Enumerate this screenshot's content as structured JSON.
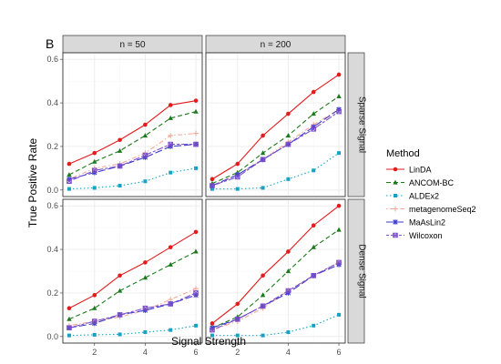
{
  "panel_tag": "B",
  "chart_data": {
    "type": "line",
    "xlabel": "Signal Strength",
    "ylabel": "True Positive Rate",
    "xlim": [
      0.75,
      6.25
    ],
    "ylim": [
      -0.03,
      0.63
    ],
    "x_ticks": [
      2,
      4,
      6
    ],
    "y_ticks": [
      0.0,
      0.2,
      0.4,
      0.6
    ],
    "y_tick_labels": [
      "0.0",
      "0.2",
      "0.4",
      "0.6"
    ],
    "x_tick_labels": [
      "2",
      "4",
      "6"
    ],
    "col_facets": [
      "n = 50",
      "n = 200"
    ],
    "row_facets": [
      "Sparse Signal",
      "Dense Signal"
    ],
    "grid": true,
    "legend_title": "Method",
    "legend_position": "right",
    "x": [
      1,
      2,
      3,
      4,
      5,
      6
    ],
    "series": [
      {
        "name": "LinDA",
        "color": "#e41a1c",
        "dash": "solid",
        "marker": "circle"
      },
      {
        "name": "ANCOM-BC",
        "color": "#1b7a1b",
        "dash": "dashed",
        "marker": "triangle"
      },
      {
        "name": "ALDEx2",
        "color": "#17a2c4",
        "dash": "dotted",
        "marker": "square"
      },
      {
        "name": "metagenomeSeq2",
        "color": "#f5a89a",
        "dash": "dotdash",
        "marker": "plus"
      },
      {
        "name": "MaAsLin2",
        "color": "#3a3acb",
        "dash": "longdash",
        "marker": "star"
      },
      {
        "name": "Wilcoxon",
        "color": "#7b4fc9",
        "dash": "twodash",
        "marker": "squarecross"
      }
    ],
    "panels": [
      {
        "row": 0,
        "col": 0,
        "values": {
          "LinDA": [
            0.12,
            0.17,
            0.23,
            0.3,
            0.39,
            0.41
          ],
          "ANCOM-BC": [
            0.07,
            0.13,
            0.18,
            0.25,
            0.33,
            0.36
          ],
          "ALDEx2": [
            0.005,
            0.01,
            0.02,
            0.04,
            0.08,
            0.1
          ],
          "metagenomeSeq2": [
            0.05,
            0.1,
            0.12,
            0.17,
            0.25,
            0.26
          ],
          "MaAsLin2": [
            0.05,
            0.08,
            0.11,
            0.15,
            0.2,
            0.21
          ],
          "Wilcoxon": [
            0.04,
            0.09,
            0.11,
            0.16,
            0.21,
            0.21
          ]
        }
      },
      {
        "row": 0,
        "col": 1,
        "values": {
          "LinDA": [
            0.05,
            0.12,
            0.25,
            0.35,
            0.45,
            0.53
          ],
          "ANCOM-BC": [
            0.03,
            0.08,
            0.17,
            0.25,
            0.35,
            0.43
          ],
          "ALDEx2": [
            0.005,
            0.005,
            0.01,
            0.05,
            0.09,
            0.17
          ],
          "metagenomeSeq2": [
            0.02,
            0.07,
            0.14,
            0.22,
            0.3,
            0.37
          ],
          "MaAsLin2": [
            0.02,
            0.07,
            0.14,
            0.21,
            0.29,
            0.37
          ],
          "Wilcoxon": [
            0.02,
            0.06,
            0.14,
            0.21,
            0.28,
            0.36
          ]
        }
      },
      {
        "row": 1,
        "col": 0,
        "values": {
          "LinDA": [
            0.13,
            0.19,
            0.28,
            0.34,
            0.41,
            0.48
          ],
          "ANCOM-BC": [
            0.08,
            0.13,
            0.21,
            0.27,
            0.33,
            0.39
          ],
          "ALDEx2": [
            0.005,
            0.008,
            0.01,
            0.02,
            0.03,
            0.05
          ],
          "metagenomeSeq2": [
            0.05,
            0.07,
            0.09,
            0.12,
            0.17,
            0.22
          ],
          "MaAsLin2": [
            0.04,
            0.06,
            0.1,
            0.12,
            0.15,
            0.19
          ],
          "Wilcoxon": [
            0.04,
            0.07,
            0.1,
            0.13,
            0.15,
            0.2
          ]
        }
      },
      {
        "row": 1,
        "col": 1,
        "values": {
          "LinDA": [
            0.06,
            0.15,
            0.28,
            0.39,
            0.51,
            0.6
          ],
          "ANCOM-BC": [
            0.04,
            0.09,
            0.19,
            0.3,
            0.41,
            0.49
          ],
          "ALDEx2": [
            0.005,
            0.005,
            0.005,
            0.02,
            0.05,
            0.1
          ],
          "metagenomeSeq2": [
            0.03,
            0.07,
            0.13,
            0.21,
            0.28,
            0.34
          ],
          "MaAsLin2": [
            0.04,
            0.08,
            0.14,
            0.2,
            0.28,
            0.33
          ],
          "Wilcoxon": [
            0.03,
            0.08,
            0.14,
            0.21,
            0.28,
            0.34
          ]
        }
      }
    ]
  }
}
